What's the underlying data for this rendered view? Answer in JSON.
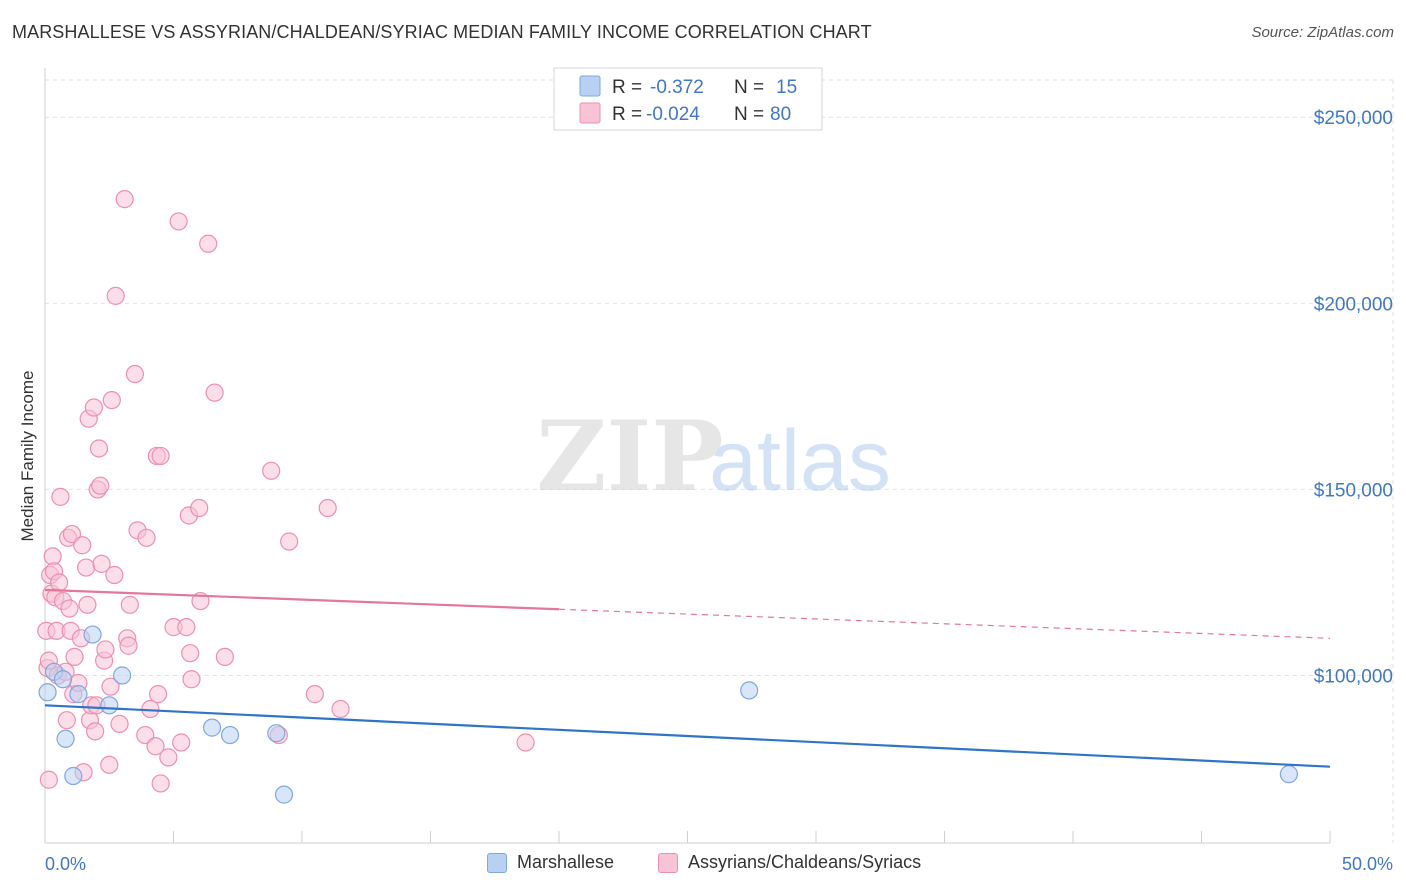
{
  "title": "MARSHALLESE VS ASSYRIAN/CHALDEAN/SYRIAC MEDIAN FAMILY INCOME CORRELATION CHART",
  "source": "Source: ZipAtlas.com",
  "watermark": {
    "zip": "ZIP",
    "atlas": "atlas"
  },
  "colors": {
    "blue": "#7fa7e0",
    "blue_fill": "#b8d1f3",
    "blue_line": "#2f74c9",
    "pink": "#ee8fb0",
    "pink_fill": "#f7c3d5",
    "pink_line": "#e4779d",
    "axis_label": "#3f78c8",
    "grid": "#e2e2e2"
  },
  "legend_top": {
    "rows": [
      {
        "r_label": "R = ",
        "r_value": "-0.372",
        "n_label": "N = ",
        "n_value": "15",
        "series": "blue"
      },
      {
        "r_label": "R = ",
        "r_value": "-0.024",
        "n_label": "N = ",
        "n_value": "80",
        "series": "pink"
      }
    ]
  },
  "legend_bottom": [
    {
      "label": "Marshallese",
      "series": "blue"
    },
    {
      "label": "Assyrians/Chaldeans/Syriacs",
      "series": "pink"
    }
  ],
  "chart_data": {
    "type": "scatter",
    "title": "MARSHALLESE VS ASSYRIAN/CHALDEAN/SYRIAC MEDIAN FAMILY INCOME CORRELATION CHART",
    "xlabel": "",
    "ylabel": "Median Family Income",
    "xlim": [
      0,
      50
    ],
    "ylim": [
      55000,
      260000
    ],
    "x_tick_labels": [
      "0.0%",
      "50.0%"
    ],
    "y_ticks": [
      100000,
      150000,
      200000,
      250000
    ],
    "y_tick_labels": [
      "$100,000",
      "$150,000",
      "$200,000",
      "$250,000"
    ],
    "grid": true,
    "series": [
      {
        "name": "Marshallese",
        "color": "blue",
        "points": [
          [
            0.1,
            95500
          ],
          [
            0.35,
            101000
          ],
          [
            0.7,
            99000
          ],
          [
            0.8,
            83000
          ],
          [
            1.1,
            73000
          ],
          [
            1.3,
            95000
          ],
          [
            1.85,
            111000
          ],
          [
            2.5,
            92000
          ],
          [
            3.0,
            100000
          ],
          [
            6.5,
            86000
          ],
          [
            7.2,
            84000
          ],
          [
            9.0,
            84500
          ],
          [
            9.3,
            68000
          ],
          [
            27.4,
            96000
          ],
          [
            48.4,
            73500
          ]
        ],
        "trend": {
          "x0": 0,
          "y0": 92000,
          "x1": 50,
          "y1": 75500
        }
      },
      {
        "name": "Assyrians/Chaldeans/Syriacs",
        "color": "pink",
        "points": [
          [
            0.05,
            112000
          ],
          [
            0.1,
            102000
          ],
          [
            0.15,
            104000
          ],
          [
            0.2,
            127000
          ],
          [
            0.25,
            122000
          ],
          [
            0.3,
            132000
          ],
          [
            0.35,
            128000
          ],
          [
            0.4,
            121000
          ],
          [
            0.45,
            112000
          ],
          [
            0.5,
            100000
          ],
          [
            0.55,
            125000
          ],
          [
            0.6,
            148000
          ],
          [
            0.7,
            120000
          ],
          [
            0.8,
            101000
          ],
          [
            0.85,
            88000
          ],
          [
            0.9,
            137000
          ],
          [
            0.95,
            118000
          ],
          [
            1.0,
            112000
          ],
          [
            1.05,
            138000
          ],
          [
            1.1,
            95000
          ],
          [
            1.15,
            105000
          ],
          [
            1.3,
            98000
          ],
          [
            1.4,
            110000
          ],
          [
            1.45,
            135000
          ],
          [
            1.5,
            74000
          ],
          [
            1.6,
            129000
          ],
          [
            1.65,
            119000
          ],
          [
            1.7,
            169000
          ],
          [
            1.75,
            88000
          ],
          [
            1.8,
            92000
          ],
          [
            1.9,
            172000
          ],
          [
            1.95,
            85000
          ],
          [
            2.05,
            150000
          ],
          [
            2.1,
            161000
          ],
          [
            2.15,
            151000
          ],
          [
            2.2,
            130000
          ],
          [
            2.3,
            104000
          ],
          [
            2.35,
            107000
          ],
          [
            2.5,
            76000
          ],
          [
            2.55,
            97000
          ],
          [
            2.6,
            174000
          ],
          [
            2.7,
            127000
          ],
          [
            2.75,
            202000
          ],
          [
            2.9,
            87000
          ],
          [
            3.1,
            228000
          ],
          [
            3.2,
            110000
          ],
          [
            3.25,
            108000
          ],
          [
            3.3,
            119000
          ],
          [
            3.5,
            181000
          ],
          [
            3.6,
            139000
          ],
          [
            3.9,
            84000
          ],
          [
            3.95,
            137000
          ],
          [
            4.1,
            91000
          ],
          [
            4.3,
            81000
          ],
          [
            4.35,
            159000
          ],
          [
            4.4,
            95000
          ],
          [
            4.5,
            159000
          ],
          [
            4.8,
            78000
          ],
          [
            5.0,
            113000
          ],
          [
            5.2,
            222000
          ],
          [
            5.3,
            82000
          ],
          [
            5.5,
            113000
          ],
          [
            5.6,
            143000
          ],
          [
            5.65,
            106000
          ],
          [
            5.7,
            99000
          ],
          [
            6.0,
            145000
          ],
          [
            6.05,
            120000
          ],
          [
            6.35,
            216000
          ],
          [
            6.6,
            176000
          ],
          [
            7.0,
            105000
          ],
          [
            8.8,
            155000
          ],
          [
            9.1,
            84000
          ],
          [
            9.5,
            136000
          ],
          [
            10.5,
            95000
          ],
          [
            11.0,
            145000
          ],
          [
            11.5,
            91000
          ],
          [
            18.7,
            82000
          ],
          [
            0.15,
            72000
          ],
          [
            4.5,
            71000
          ],
          [
            2.0,
            92000
          ]
        ],
        "trend": {
          "x0": 0,
          "y0": 123000,
          "x1": 50,
          "y1": 110000,
          "solid_until_x": 20
        }
      }
    ]
  }
}
